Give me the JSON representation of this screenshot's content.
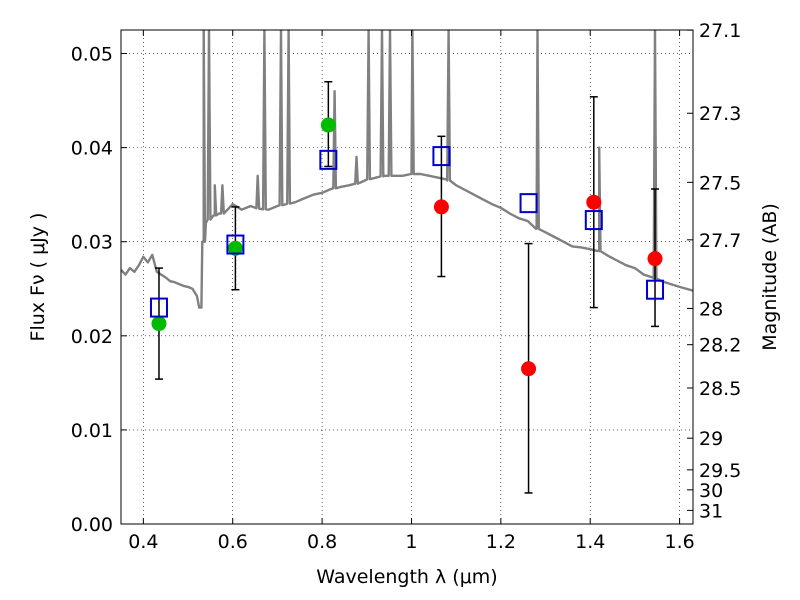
{
  "chart_data": {
    "type": "scatter",
    "xlabel": "Wavelength  λ (μm)",
    "ylabel": "Flux  Fν  ( μJy )",
    "y2label": "Magnitude (AB)",
    "xlim": [
      0.35,
      1.63
    ],
    "ylim": [
      0.0,
      0.0525
    ],
    "grid": true,
    "x_ticks": [
      {
        "value": 0.4,
        "label": "0.4"
      },
      {
        "value": 0.6,
        "label": "0.6"
      },
      {
        "value": 0.8,
        "label": "0.8"
      },
      {
        "value": 1.0,
        "label": "1"
      },
      {
        "value": 1.2,
        "label": "1.2"
      },
      {
        "value": 1.4,
        "label": "1.4"
      },
      {
        "value": 1.6,
        "label": "1.6"
      }
    ],
    "y_ticks": [
      {
        "value": 0.0,
        "label": "0.00"
      },
      {
        "value": 0.01,
        "label": "0.01"
      },
      {
        "value": 0.02,
        "label": "0.02"
      },
      {
        "value": 0.03,
        "label": "0.03"
      },
      {
        "value": 0.04,
        "label": "0.04"
      },
      {
        "value": 0.05,
        "label": "0.05"
      }
    ],
    "y2_ticks": [
      {
        "mag": 27.1,
        "label": "27.1"
      },
      {
        "mag": 27.3,
        "label": "27.3"
      },
      {
        "mag": 27.5,
        "label": "27.5"
      },
      {
        "mag": 27.7,
        "label": "27.7"
      },
      {
        "mag": 28.0,
        "label": "28"
      },
      {
        "mag": 28.2,
        "label": "28.2"
      },
      {
        "mag": 28.5,
        "label": "28.5"
      },
      {
        "mag": 29.0,
        "label": "29"
      },
      {
        "mag": 29.5,
        "label": "29.5"
      },
      {
        "mag": 30.0,
        "label": "30"
      },
      {
        "mag": 31.0,
        "label": "31"
      }
    ],
    "series": [
      {
        "marker": "circle",
        "color": "#00bb00",
        "points": [
          {
            "x": 0.435,
            "y": 0.0213,
            "err_low": 0.0154,
            "err_high": 0.0272
          },
          {
            "x": 0.606,
            "y": 0.0293,
            "err_low": 0.0249,
            "err_high": 0.0337
          },
          {
            "x": 0.814,
            "y": 0.0424,
            "err_low": 0.038,
            "err_high": 0.047
          }
        ]
      },
      {
        "marker": "circle",
        "color": "#ff0000",
        "points": [
          {
            "x": 1.067,
            "y": 0.0337,
            "err_low": 0.0263,
            "err_high": 0.0412
          },
          {
            "x": 1.262,
            "y": 0.0165,
            "err_low": 0.0033,
            "err_high": 0.0298
          },
          {
            "x": 1.408,
            "y": 0.0342,
            "err_low": 0.023,
            "err_high": 0.0454
          },
          {
            "x": 1.545,
            "y": 0.0282,
            "err_low": 0.021,
            "err_high": 0.0356
          }
        ]
      },
      {
        "marker": "open-square",
        "color": "#0000cc",
        "points": [
          {
            "x": 0.435,
            "y": 0.023
          },
          {
            "x": 0.606,
            "y": 0.0297
          },
          {
            "x": 0.814,
            "y": 0.0387
          },
          {
            "x": 1.067,
            "y": 0.0391
          },
          {
            "x": 1.262,
            "y": 0.0341
          },
          {
            "x": 1.408,
            "y": 0.0323
          },
          {
            "x": 1.545,
            "y": 0.0249
          }
        ]
      }
    ],
    "model_spectrum": {
      "color": "#808080",
      "x": [
        0.35,
        0.36,
        0.37,
        0.38,
        0.39,
        0.4,
        0.41,
        0.42,
        0.43,
        0.44,
        0.45,
        0.46,
        0.47,
        0.48,
        0.49,
        0.5,
        0.51,
        0.52,
        0.525,
        0.53,
        0.535,
        0.54,
        0.55,
        0.56,
        0.57,
        0.58,
        0.59,
        0.6,
        0.62,
        0.64,
        0.66,
        0.68,
        0.7,
        0.72,
        0.74,
        0.76,
        0.78,
        0.8,
        0.82,
        0.84,
        0.86,
        0.88,
        0.9,
        0.92,
        0.94,
        0.96,
        0.98,
        1.0,
        1.02,
        1.04,
        1.06,
        1.08,
        1.1,
        1.12,
        1.14,
        1.16,
        1.18,
        1.2,
        1.22,
        1.24,
        1.26,
        1.28,
        1.3,
        1.32,
        1.34,
        1.36,
        1.38,
        1.4,
        1.42,
        1.44,
        1.46,
        1.48,
        1.5,
        1.52,
        1.54,
        1.56,
        1.58,
        1.6,
        1.63
      ],
      "y": [
        0.027,
        0.0265,
        0.0272,
        0.0268,
        0.0275,
        0.0284,
        0.0278,
        0.0286,
        0.0268,
        0.0265,
        0.0262,
        0.0258,
        0.0257,
        0.0255,
        0.0253,
        0.0252,
        0.025,
        0.0242,
        0.023,
        0.023,
        0.03,
        0.032,
        0.0325,
        0.0328,
        0.033,
        0.033,
        0.0335,
        0.034,
        0.0334,
        0.0338,
        0.0335,
        0.0334,
        0.0338,
        0.034,
        0.0342,
        0.0346,
        0.035,
        0.0352,
        0.0356,
        0.0358,
        0.036,
        0.0362,
        0.0366,
        0.0368,
        0.037,
        0.037,
        0.037,
        0.0372,
        0.0372,
        0.037,
        0.0368,
        0.0366,
        0.036,
        0.0355,
        0.035,
        0.0345,
        0.034,
        0.0336,
        0.033,
        0.0325,
        0.0322,
        0.0314,
        0.031,
        0.0305,
        0.03,
        0.0295,
        0.0294,
        0.0292,
        0.029,
        0.0285,
        0.028,
        0.0275,
        0.0272,
        0.0265,
        0.0262,
        0.0258,
        0.0255,
        0.0252,
        0.0248
      ]
    },
    "emission_lines": [
      {
        "x": 0.535,
        "peak": 0.0525
      },
      {
        "x": 0.547,
        "peak": 0.0525
      },
      {
        "x": 0.56,
        "peak": 0.036
      },
      {
        "x": 0.577,
        "peak": 0.036
      },
      {
        "x": 0.656,
        "peak": 0.037
      },
      {
        "x": 0.671,
        "peak": 0.0525
      },
      {
        "x": 0.708,
        "peak": 0.0525
      },
      {
        "x": 0.725,
        "peak": 0.0525
      },
      {
        "x": 0.828,
        "peak": 0.046
      },
      {
        "x": 0.877,
        "peak": 0.039
      },
      {
        "x": 0.904,
        "peak": 0.0525
      },
      {
        "x": 0.934,
        "peak": 0.0525
      },
      {
        "x": 0.952,
        "peak": 0.0525
      },
      {
        "x": 1.002,
        "peak": 0.0525
      },
      {
        "x": 1.083,
        "peak": 0.0525
      },
      {
        "x": 1.282,
        "peak": 0.0525
      },
      {
        "x": 1.42,
        "peak": 0.04
      },
      {
        "x": 1.545,
        "peak": 0.0525
      }
    ]
  }
}
